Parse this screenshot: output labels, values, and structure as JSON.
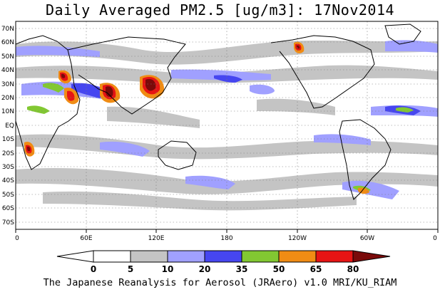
{
  "title": "Daily Averaged PM2.5 [ug/m3]: 17Nov2014",
  "lat_labels": [
    "70N",
    "60N",
    "50N",
    "40N",
    "30N",
    "20N",
    "10N",
    "EQ",
    "10S",
    "20S",
    "30S",
    "40S",
    "50S",
    "60S",
    "70S"
  ],
  "lon_labels": [
    "0",
    "60E",
    "120E",
    "180",
    "120W",
    "60W",
    "0"
  ],
  "colorbar": {
    "ticks": [
      "0",
      "5",
      "10",
      "20",
      "35",
      "50",
      "65",
      "80"
    ],
    "colors": [
      "#ffffff",
      "#c4c4c4",
      "#a0a0ff",
      "#4646f0",
      "#82c832",
      "#f08c14",
      "#e61414",
      "#7a0a0a"
    ]
  },
  "credit": "The Japanese Reanalysis for Aerosol (JRAero) v1.0 MRI/KU_RIAM"
}
